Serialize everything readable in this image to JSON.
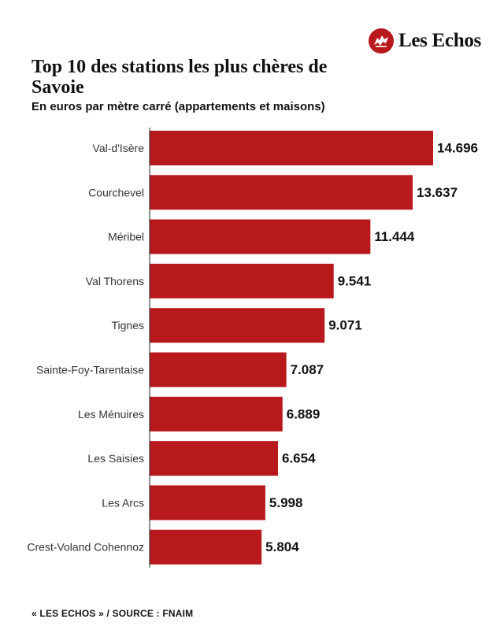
{
  "brand": {
    "name": "Les Echos",
    "accent": "#b8191c"
  },
  "header": {
    "title": "Top 10 des stations les plus chères de Savoie",
    "subtitle": "En euros par mètre carré (appartements et maisons)"
  },
  "footer": {
    "source": "« LES ECHOS » / SOURCE : FNAIM"
  },
  "chart_data": {
    "type": "bar",
    "orientation": "horizontal",
    "title": "Top 10 des stations les plus chères de Savoie",
    "subtitle": "En euros par mètre carré (appartements et maisons)",
    "categories": [
      "Val-d'Isère",
      "Courchevel",
      "Méribel",
      "Val Thorens",
      "Tignes",
      "Sainte-Foy-Tarentaise",
      "Les Ménuires",
      "Les Saisies",
      "Les Arcs",
      "Crest-Voland Cohennoz"
    ],
    "values": [
      14696,
      13637,
      11444,
      9541,
      9071,
      7087,
      6889,
      6654,
      5998,
      5804
    ],
    "labels": [
      "14.696",
      "13.637",
      "11.444",
      "9.541",
      "9.071",
      "7.087",
      "6.889",
      "6.654",
      "5.998",
      "5.804"
    ],
    "xlim": [
      0,
      14696
    ],
    "grid": false,
    "color": "#b8191c"
  }
}
